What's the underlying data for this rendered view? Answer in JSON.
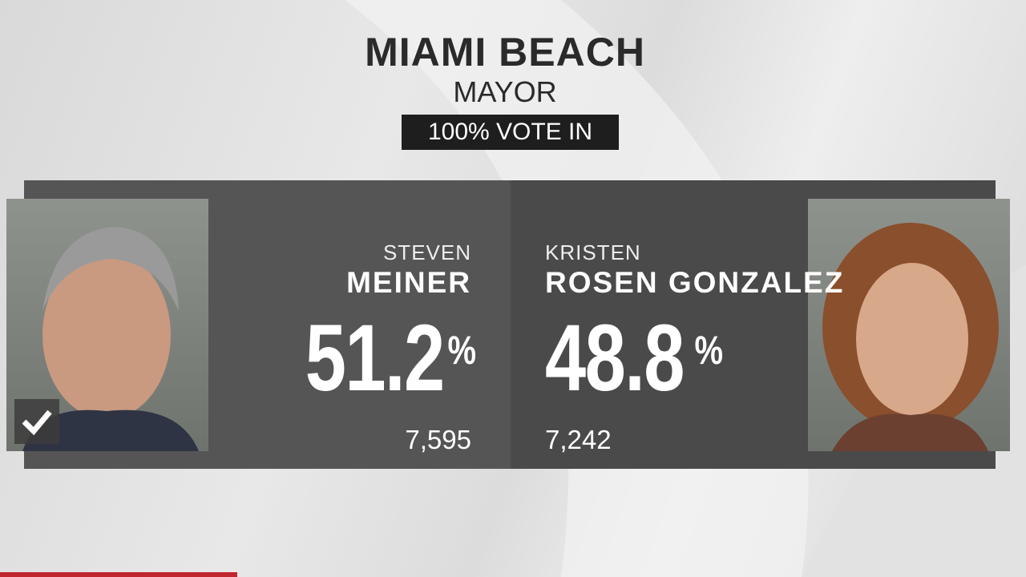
{
  "header": {
    "title": "MIAMI BEACH",
    "subtitle": "MAYOR",
    "status": "100% VOTE IN"
  },
  "candidates": [
    {
      "first_name": "STEVEN",
      "last_name": "MEINER",
      "percent": "51.2",
      "percent_sign": "%",
      "votes": "7,595",
      "winner": true
    },
    {
      "first_name": "KRISTEN",
      "last_name": "ROSEN GONZALEZ",
      "percent": "48.8",
      "percent_sign": "%",
      "votes": "7,242",
      "winner": false
    }
  ]
}
